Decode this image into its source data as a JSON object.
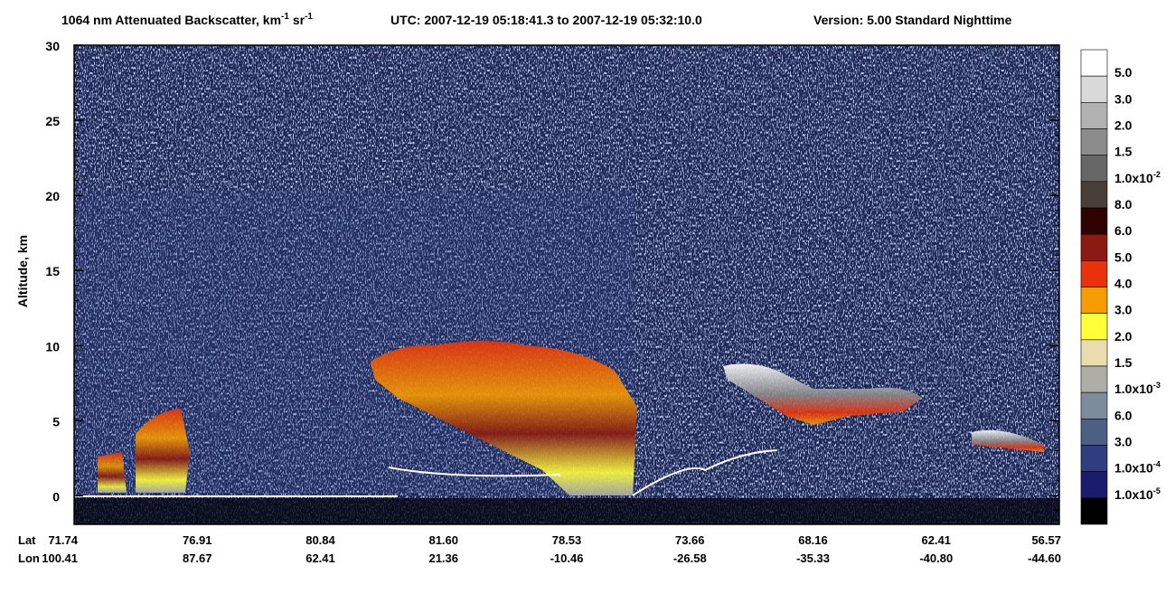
{
  "chart_data": {
    "type": "heatmap",
    "title": {
      "main": "1064 nm Attenuated Backscatter, km",
      "sup1": "-1",
      "mid": " sr",
      "sup2": "-1"
    },
    "utc": "UTC:  2007-12-19 05:18:41.3  to  2007-12-19 05:32:10.0",
    "version": "Version: 5.00  Standard  Nighttime",
    "y_label": "Altitude, km",
    "ylim": [
      -1.9,
      30
    ],
    "yticks": [
      0,
      5,
      10,
      15,
      20,
      25,
      30
    ],
    "x_rows": [
      {
        "label": "Lat",
        "values": [
          "71.74",
          "76.91",
          "80.84",
          "81.60",
          "78.53",
          "73.66",
          "68.16",
          "62.41",
          "56.57"
        ]
      },
      {
        "label": "Lon",
        "values": [
          "100.41",
          "87.67",
          "62.41",
          "21.36",
          "-10.46",
          "-26.58",
          "-35.33",
          "-40.80",
          "-44.60"
        ]
      }
    ],
    "colorbar": {
      "colors": [
        "#ffffff",
        "#d9d9d9",
        "#b2b2b2",
        "#8c8c8c",
        "#666666",
        "#4a3e3a",
        "#2e0202",
        "#8a1a12",
        "#e8320c",
        "#f59c00",
        "#ffff3a",
        "#eadcae",
        "#aeaea6",
        "#7c8c9c",
        "#4e5f84",
        "#2e3e80",
        "#1c1c6c",
        "#000000"
      ],
      "labels": [
        {
          "text": "5.0"
        },
        {
          "text": "3.0"
        },
        {
          "text": "2.0"
        },
        {
          "text": "1.5"
        },
        {
          "text": "1.0x10",
          "sup": "-2"
        },
        {
          "text": "8.0"
        },
        {
          "text": "6.0"
        },
        {
          "text": "5.0"
        },
        {
          "text": "4.0"
        },
        {
          "text": "3.0"
        },
        {
          "text": "2.0"
        },
        {
          "text": "1.5"
        },
        {
          "text": "1.0x10",
          "sup": "-3"
        },
        {
          "text": "6.0"
        },
        {
          "text": "3.0"
        },
        {
          "text": "1.0x10",
          "sup": "-4"
        },
        {
          "text": "1.0x10",
          "sup": "-5"
        }
      ]
    }
  }
}
